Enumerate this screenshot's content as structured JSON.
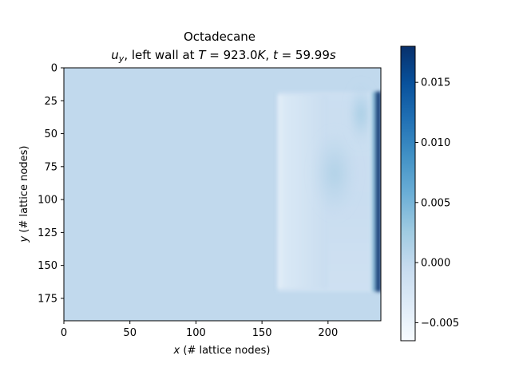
{
  "chart_data": {
    "type": "heatmap",
    "title": "Octadecane",
    "subtitle_parts": {
      "var": "u",
      "var_sub": "y",
      "prefix": ", left wall at ",
      "T_sym": "T",
      "T_val": " = 923.0",
      "T_unit": "K",
      "sep": ", ",
      "t_sym": "t",
      "t_val": " = 59.99",
      "t_unit": "s"
    },
    "xlabel_var": "x",
    "xlabel_rest": " (# lattice nodes)",
    "ylabel_var": "y",
    "ylabel_rest": " (# lattice nodes)",
    "xlim": [
      0,
      240
    ],
    "ylim": [
      0,
      192
    ],
    "y_inverted": true,
    "x_ticks": [
      0,
      50,
      100,
      150,
      200
    ],
    "y_ticks": [
      0,
      25,
      50,
      75,
      100,
      125,
      150,
      175
    ],
    "colorbar": {
      "colormap": "Blues",
      "vmin": -0.0065,
      "vmax": 0.018,
      "ticks": [
        -0.005,
        0.0,
        0.005,
        0.01,
        0.015
      ],
      "tick_labels": [
        "−0.005",
        "0.000",
        "0.005",
        "0.010",
        "0.015"
      ]
    },
    "field": {
      "background_value": 0.0,
      "melt_front_x": 162,
      "melt_front_y_range": [
        18,
        170
      ],
      "features": [
        {
          "kind": "negative_band",
          "x_range": [
            162,
            200
          ],
          "value": -0.004
        },
        {
          "kind": "positive_plume",
          "x_center": 205,
          "y_center": 80,
          "value": 0.0015
        },
        {
          "kind": "positive_plume",
          "x_center": 225,
          "y_center": 35,
          "value": 0.003
        },
        {
          "kind": "hot_wall_jet",
          "x_range": [
            234,
            240
          ],
          "y_range": [
            18,
            170
          ],
          "value": 0.0175
        }
      ]
    }
  }
}
